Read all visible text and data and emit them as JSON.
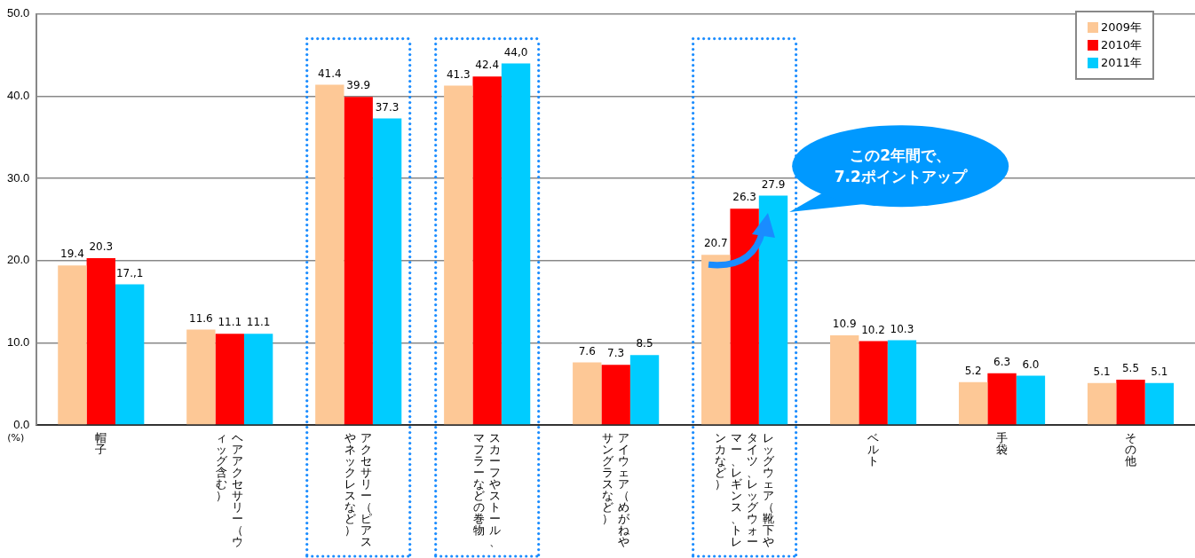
{
  "chart_data": {
    "type": "bar",
    "ylabel": "(%)",
    "categories": [
      "帽子",
      "ヘアアクセサリー（ウィッグ含む）",
      "アクセサリー（ピアスやネックレスなど）",
      "スカーフやストール、マフラーなどの巻物",
      "アイウェア（めがねやサングラスなど）",
      "レッグウェア（靴下やタイツ、レッグウォーマー、レギンス、トレンカなど）",
      "ベルト",
      "手袋",
      "その他"
    ],
    "series": [
      {
        "name": "2009年",
        "color": "#fdc896",
        "values": [
          19.4,
          11.6,
          41.4,
          41.3,
          7.6,
          20.7,
          10.9,
          5.2,
          5.1
        ],
        "value_labels": [
          "19.4",
          "11.6",
          "41.4",
          "41.3",
          "7.6",
          "20.7",
          "10.9",
          "5.2",
          "5.1"
        ]
      },
      {
        "name": "2010年",
        "color": "#ff0000",
        "values": [
          20.3,
          11.1,
          39.9,
          42.4,
          7.3,
          26.3,
          10.2,
          6.3,
          5.5
        ],
        "value_labels": [
          "20.3",
          "11.1",
          "39.9",
          "42.4",
          "7.3",
          "26.3",
          "10.2",
          "6.3",
          "5.5"
        ]
      },
      {
        "name": "2011年",
        "color": "#00ccff",
        "values": [
          17.1,
          11.1,
          37.3,
          44.0,
          8.5,
          27.9,
          10.3,
          6.0,
          5.1
        ],
        "value_labels": [
          "17.,1",
          "11.1",
          "37.3",
          "44,0",
          "8.5",
          "27.9",
          "10.3",
          "6.0",
          "5.1"
        ]
      }
    ],
    "ylim": [
      0,
      50
    ],
    "yticks": [
      {
        "value": 0,
        "label": "0.0"
      },
      {
        "value": 10,
        "label": "10.0"
      },
      {
        "value": 20,
        "label": "20.0"
      },
      {
        "value": 30,
        "label": "30.0"
      },
      {
        "value": 40,
        "label": "40.0"
      },
      {
        "value": 50,
        "label": "50.0"
      }
    ],
    "grid": "y",
    "legend": "top right",
    "annotations": [
      "この2年間で、\n7.2ポイントアップ"
    ]
  }
}
